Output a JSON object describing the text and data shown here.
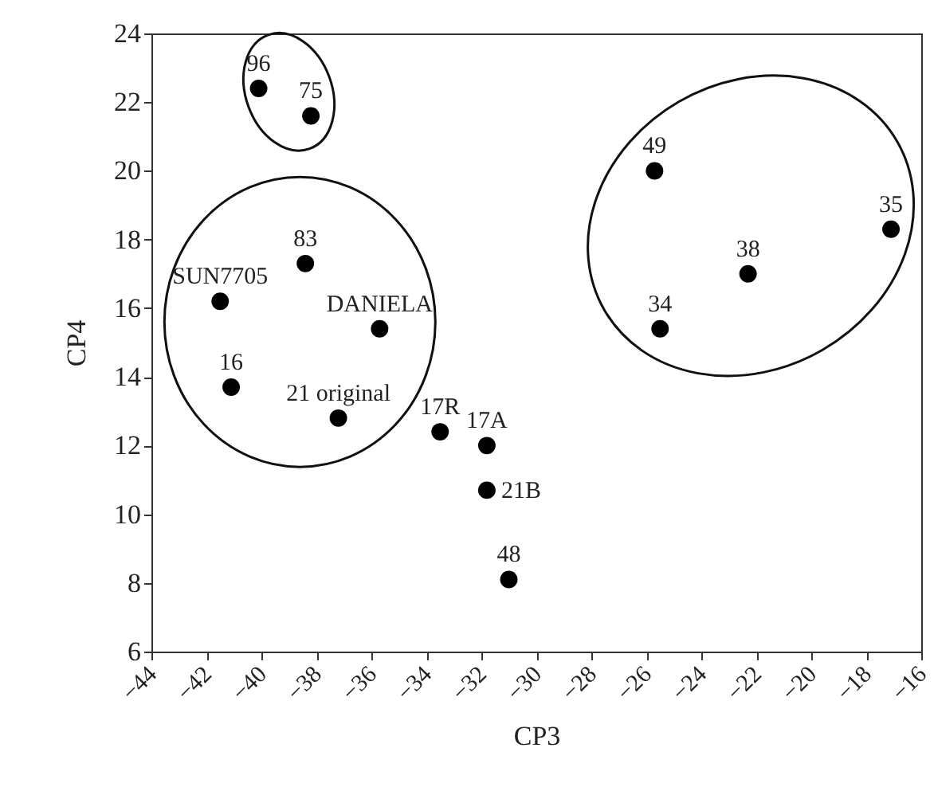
{
  "chart_data": {
    "type": "scatter",
    "xlabel": "CP3",
    "ylabel": "CP4",
    "xlim": [
      -44,
      -16
    ],
    "xticks": [
      -44,
      -42,
      -40,
      -38,
      -36,
      -34,
      -32,
      -30,
      -28,
      -26,
      -24,
      -22,
      -20,
      -18,
      -16
    ],
    "ylim": [
      6,
      24
    ],
    "yticks": [
      6,
      8,
      10,
      12,
      14,
      16,
      18,
      20,
      22,
      24
    ],
    "grid": false,
    "legend": false,
    "marker": "circle",
    "series": [
      {
        "name": "96",
        "color": "#000000",
        "x": [
          -40.1
        ],
        "values": [
          22.4
        ]
      },
      {
        "name": "75",
        "color": "#000000",
        "x": [
          -38.2
        ],
        "values": [
          21.6
        ]
      },
      {
        "name": "83",
        "color": "#000000",
        "x": [
          -38.4
        ],
        "values": [
          17.3
        ]
      },
      {
        "name": "SUN7705",
        "color": "#000000",
        "x": [
          -41.5
        ],
        "values": [
          16.2
        ]
      },
      {
        "name": "DANIELA",
        "color": "#000000",
        "x": [
          -35.7
        ],
        "values": [
          15.4
        ]
      },
      {
        "name": "16",
        "color": "#000000",
        "x": [
          -41.1
        ],
        "values": [
          13.7
        ]
      },
      {
        "name": "21 original",
        "color": "#000000",
        "x": [
          -37.2
        ],
        "values": [
          12.8
        ]
      },
      {
        "name": "17R",
        "color": "#000000",
        "x": [
          -33.5
        ],
        "values": [
          12.4
        ]
      },
      {
        "name": "17A",
        "color": "#000000",
        "x": [
          -31.8
        ],
        "values": [
          12.0
        ]
      },
      {
        "name": "21B",
        "color": "#000000",
        "x": [
          -31.8
        ],
        "values": [
          10.7
        ]
      },
      {
        "name": "48",
        "color": "#000000",
        "x": [
          -31.0
        ],
        "values": [
          8.1
        ]
      },
      {
        "name": "49",
        "color": "#000000",
        "x": [
          -25.7
        ],
        "values": [
          20.0
        ]
      },
      {
        "name": "35",
        "color": "#000000",
        "x": [
          -17.1
        ],
        "values": [
          18.3
        ]
      },
      {
        "name": "38",
        "color": "#000000",
        "x": [
          -22.3
        ],
        "values": [
          17.0
        ]
      },
      {
        "name": "34",
        "color": "#000000",
        "x": [
          -25.5
        ],
        "values": [
          15.4
        ]
      }
    ]
  }
}
